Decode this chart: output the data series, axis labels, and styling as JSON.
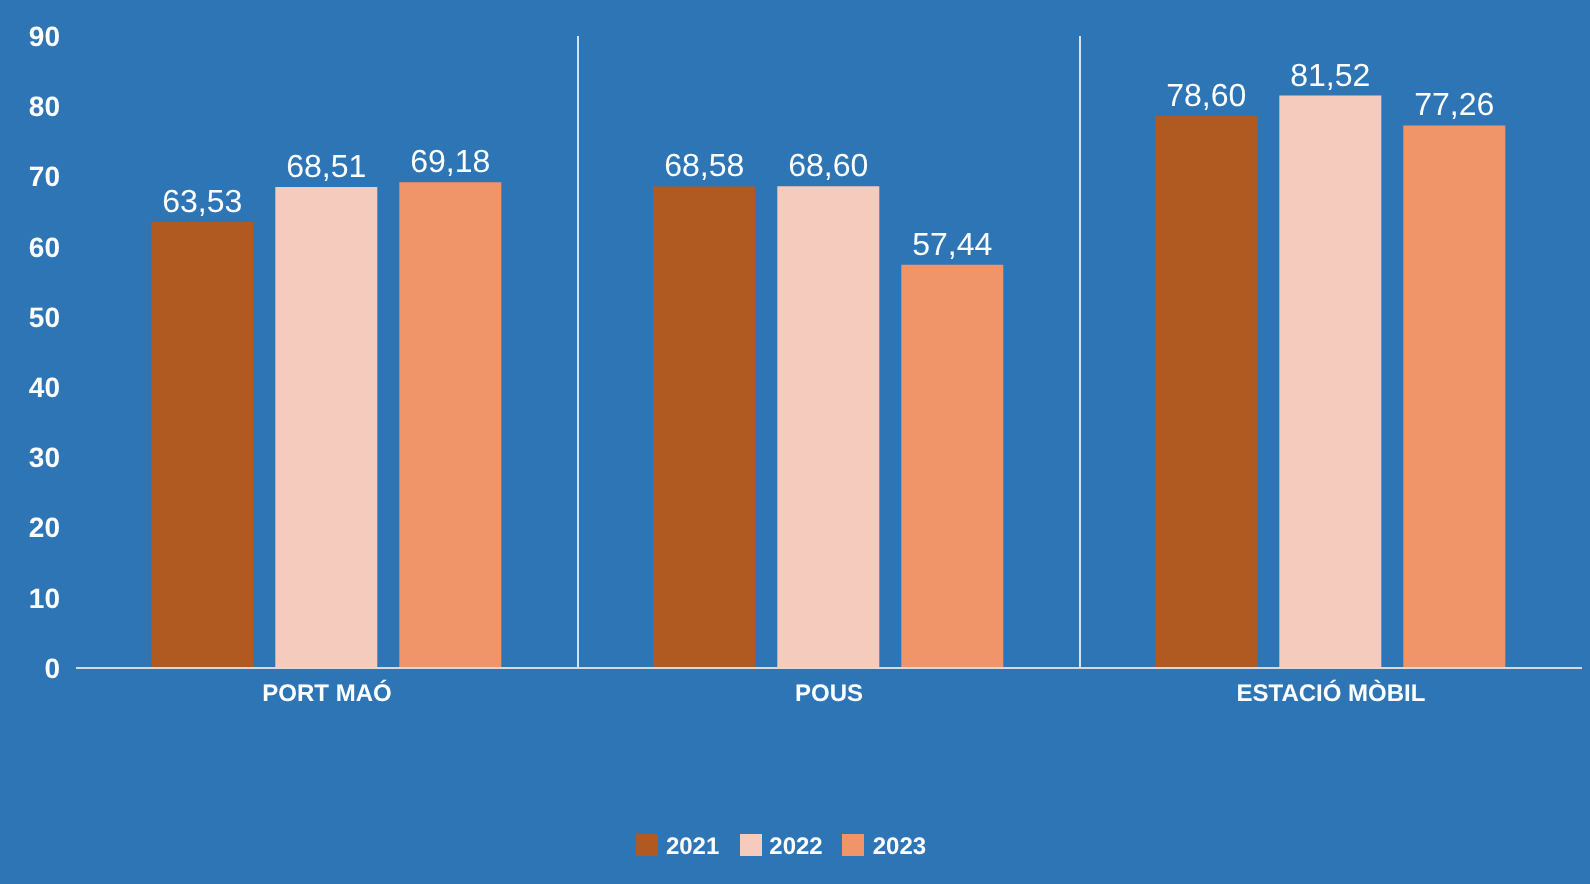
{
  "chart_data": {
    "type": "bar",
    "categories": [
      "PORT MAÓ",
      "POUS",
      "ESTACIÓ MÒBIL"
    ],
    "series": [
      {
        "name": "2021",
        "color": "#b05a22",
        "values": [
          63.53,
          68.58,
          78.6
        ],
        "value_labels": [
          "63,53",
          "68,58",
          "78,60"
        ]
      },
      {
        "name": "2022",
        "color": "#f5cbbd",
        "values": [
          68.51,
          68.6,
          81.52
        ],
        "value_labels": [
          "68,51",
          "68,60",
          "81,52"
        ]
      },
      {
        "name": "2023",
        "color": "#f0956a",
        "values": [
          69.18,
          57.44,
          77.26
        ],
        "value_labels": [
          "69,18",
          "57,44",
          "77,26"
        ]
      }
    ],
    "ylim": [
      0,
      90
    ],
    "yticks": [
      0,
      10,
      20,
      30,
      40,
      50,
      60,
      70,
      80,
      90
    ],
    "grid": "x",
    "legend": "bottom"
  }
}
